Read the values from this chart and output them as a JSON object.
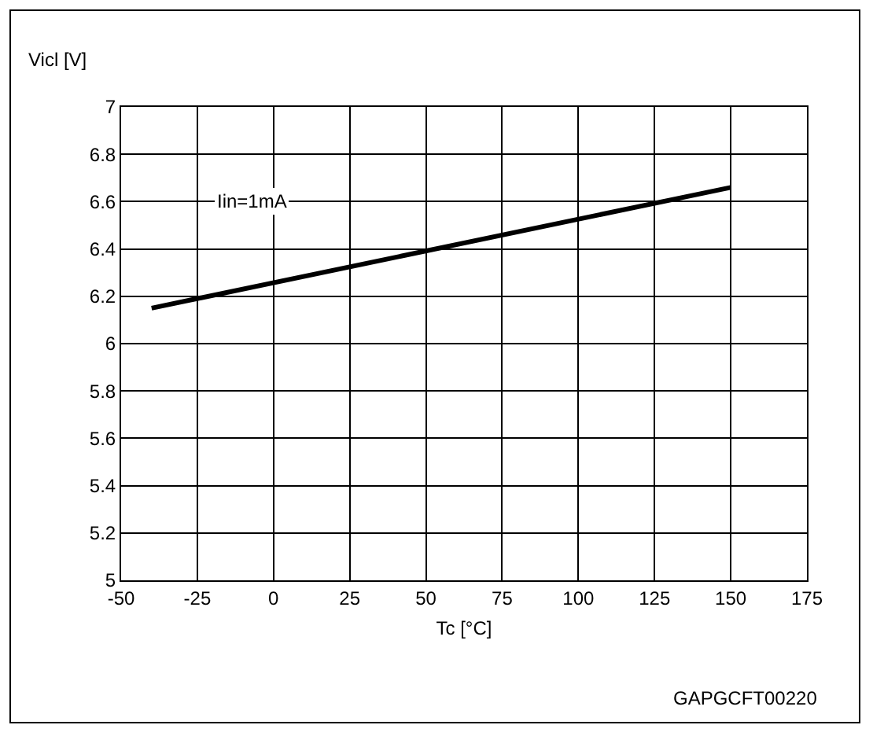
{
  "chart_data": {
    "type": "line",
    "xlabel": "Tc [°C]",
    "ylabel": "Vicl [V]",
    "annotations": [
      "Iin=1mA",
      "GAPGCFT00220"
    ],
    "x": [
      -40,
      150
    ],
    "series": [
      {
        "color": "#000000",
        "values": [
          6.15,
          6.66
        ]
      }
    ],
    "xlim": [
      -50,
      175
    ],
    "xticks": [
      -50,
      -25,
      0,
      25,
      50,
      75,
      100,
      125,
      150,
      175
    ],
    "ylim": [
      5,
      7
    ],
    "yticks": [
      5,
      5.2,
      5.4,
      5.6,
      5.8,
      6,
      6.2,
      6.4,
      6.6,
      6.8,
      7
    ],
    "grid": true,
    "marker": "none",
    "line_style": "solid"
  }
}
